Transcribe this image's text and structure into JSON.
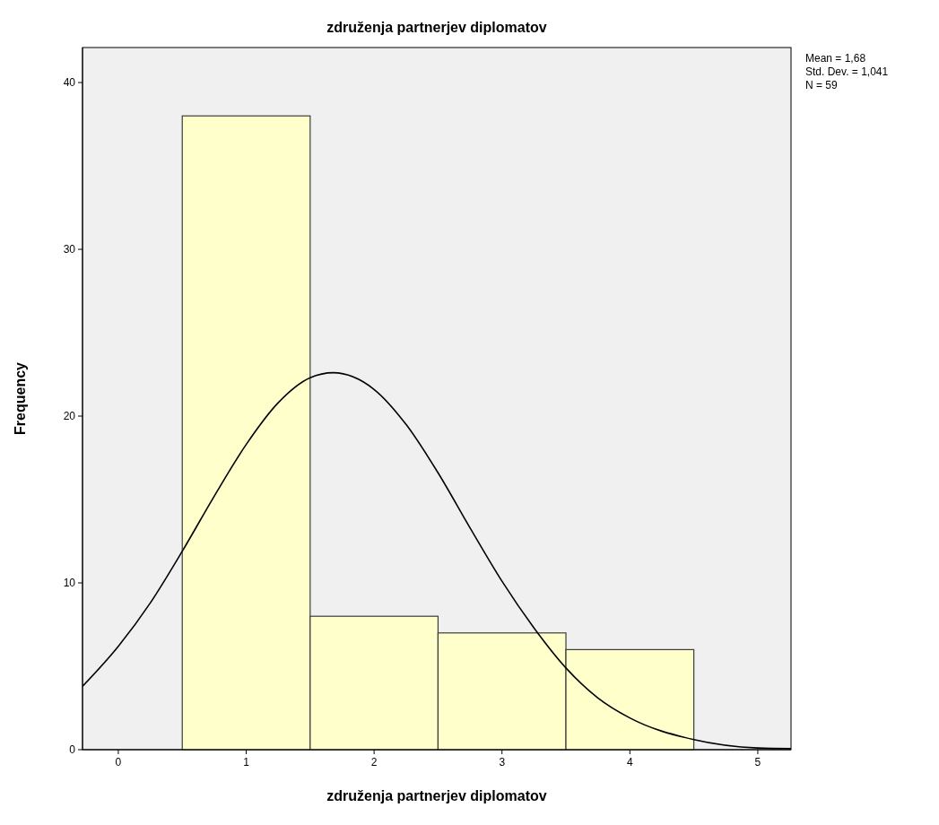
{
  "chart_data": {
    "type": "histogram",
    "title": "združenja partnerjev diplomatov",
    "xlabel": "združenja partnerjev diplomatov",
    "ylabel": "Frequency",
    "bins": [
      0.5,
      1.5,
      2.5,
      3.5,
      4.5
    ],
    "values": [
      38,
      8,
      7,
      6
    ],
    "color": "#ffffcc",
    "series": [
      {
        "type": "line",
        "color": "#000000",
        "x": [
          -0.28,
          0,
          0.25,
          0.5,
          0.75,
          1,
          1.25,
          1.5,
          1.68,
          2,
          2.25,
          2.5,
          2.75,
          3,
          3.25,
          3.5,
          3.75,
          4,
          4.5,
          5,
          5.26
        ],
        "values": [
          3.8,
          6.2,
          8.8,
          11.9,
          15.2,
          18.3,
          20.8,
          22.3,
          22.6,
          21.6,
          19.5,
          16.6,
          13.3,
          10.1,
          7.3,
          4.9,
          3.1,
          1.9,
          0.6,
          0.1,
          0.06
        ]
      }
    ],
    "xlim": [
      -0.28,
      5.26
    ],
    "ylim": [
      0,
      42.1
    ],
    "xticks": [
      0,
      1,
      2,
      3,
      4,
      5
    ],
    "yticks": [
      0,
      10,
      20,
      30,
      40
    ],
    "annotations": [
      "Mean = 1,68",
      "Std. Dev. = 1,041",
      "N = 59"
    ]
  }
}
